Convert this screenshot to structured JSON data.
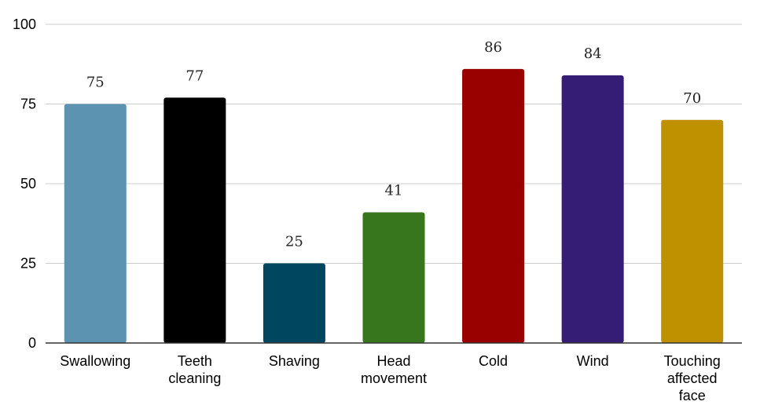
{
  "chart_data": {
    "type": "bar",
    "title": "",
    "xlabel": "",
    "ylabel": "",
    "categories": [
      "Swallowing",
      "Teeth cleaning",
      "Shaving",
      "Head movement",
      "Cold",
      "Wind",
      "Touching affected face"
    ],
    "category_lines": [
      [
        "Swallowing"
      ],
      [
        "Teeth",
        "cleaning"
      ],
      [
        "Shaving"
      ],
      [
        "Head",
        "movement"
      ],
      [
        "Cold"
      ],
      [
        "Wind"
      ],
      [
        "Touching",
        "affected",
        "face"
      ]
    ],
    "values": [
      75,
      77,
      25,
      41,
      86,
      84,
      70
    ],
    "data_labels": [
      "75",
      "77",
      "25",
      "41",
      "86",
      "84",
      "70"
    ],
    "bar_colors": [
      "#5b93b0",
      "#000000",
      "#01465f",
      "#38761d",
      "#990000",
      "#351c75",
      "#bf9000"
    ],
    "ylim": [
      0,
      100
    ],
    "yticks": [
      0,
      25,
      50,
      75,
      100
    ],
    "ytick_labels": [
      "0",
      "25",
      "50",
      "75",
      "100"
    ],
    "grid": true,
    "legend": "none"
  }
}
